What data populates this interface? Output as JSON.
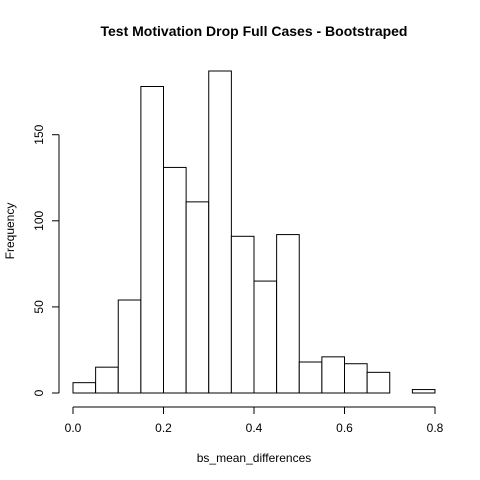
{
  "chart_data": {
    "type": "bar",
    "title": "Test Motivation Drop Full Cases - Bootstraped",
    "xlabel": "bs_mean_differences",
    "ylabel": "Frequency",
    "bins": [
      {
        "from": 0.0,
        "to": 0.05,
        "count": 6
      },
      {
        "from": 0.05,
        "to": 0.1,
        "count": 15
      },
      {
        "from": 0.1,
        "to": 0.15,
        "count": 54
      },
      {
        "from": 0.15,
        "to": 0.2,
        "count": 178
      },
      {
        "from": 0.2,
        "to": 0.25,
        "count": 131
      },
      {
        "from": 0.25,
        "to": 0.3,
        "count": 111
      },
      {
        "from": 0.3,
        "to": 0.35,
        "count": 187
      },
      {
        "from": 0.35,
        "to": 0.4,
        "count": 91
      },
      {
        "from": 0.4,
        "to": 0.45,
        "count": 65
      },
      {
        "from": 0.45,
        "to": 0.5,
        "count": 92
      },
      {
        "from": 0.5,
        "to": 0.55,
        "count": 18
      },
      {
        "from": 0.55,
        "to": 0.6,
        "count": 21
      },
      {
        "from": 0.6,
        "to": 0.65,
        "count": 17
      },
      {
        "from": 0.65,
        "to": 0.7,
        "count": 12
      },
      {
        "from": 0.7,
        "to": 0.75,
        "count": 0
      },
      {
        "from": 0.75,
        "to": 0.8,
        "count": 2
      }
    ],
    "xlim": [
      0,
      0.8
    ],
    "ylim": [
      0,
      187
    ],
    "x_ticks": [
      0.0,
      0.2,
      0.4,
      0.6,
      0.8
    ],
    "x_tick_labels": [
      "0.0",
      "0.2",
      "0.4",
      "0.6",
      "0.8"
    ],
    "y_ticks": [
      0,
      50,
      100,
      150
    ],
    "y_tick_labels": [
      "0",
      "50",
      "100",
      "150"
    ],
    "grid": false,
    "colors": {
      "bar_fill": "#ffffff",
      "bar_stroke": "#000000"
    }
  }
}
